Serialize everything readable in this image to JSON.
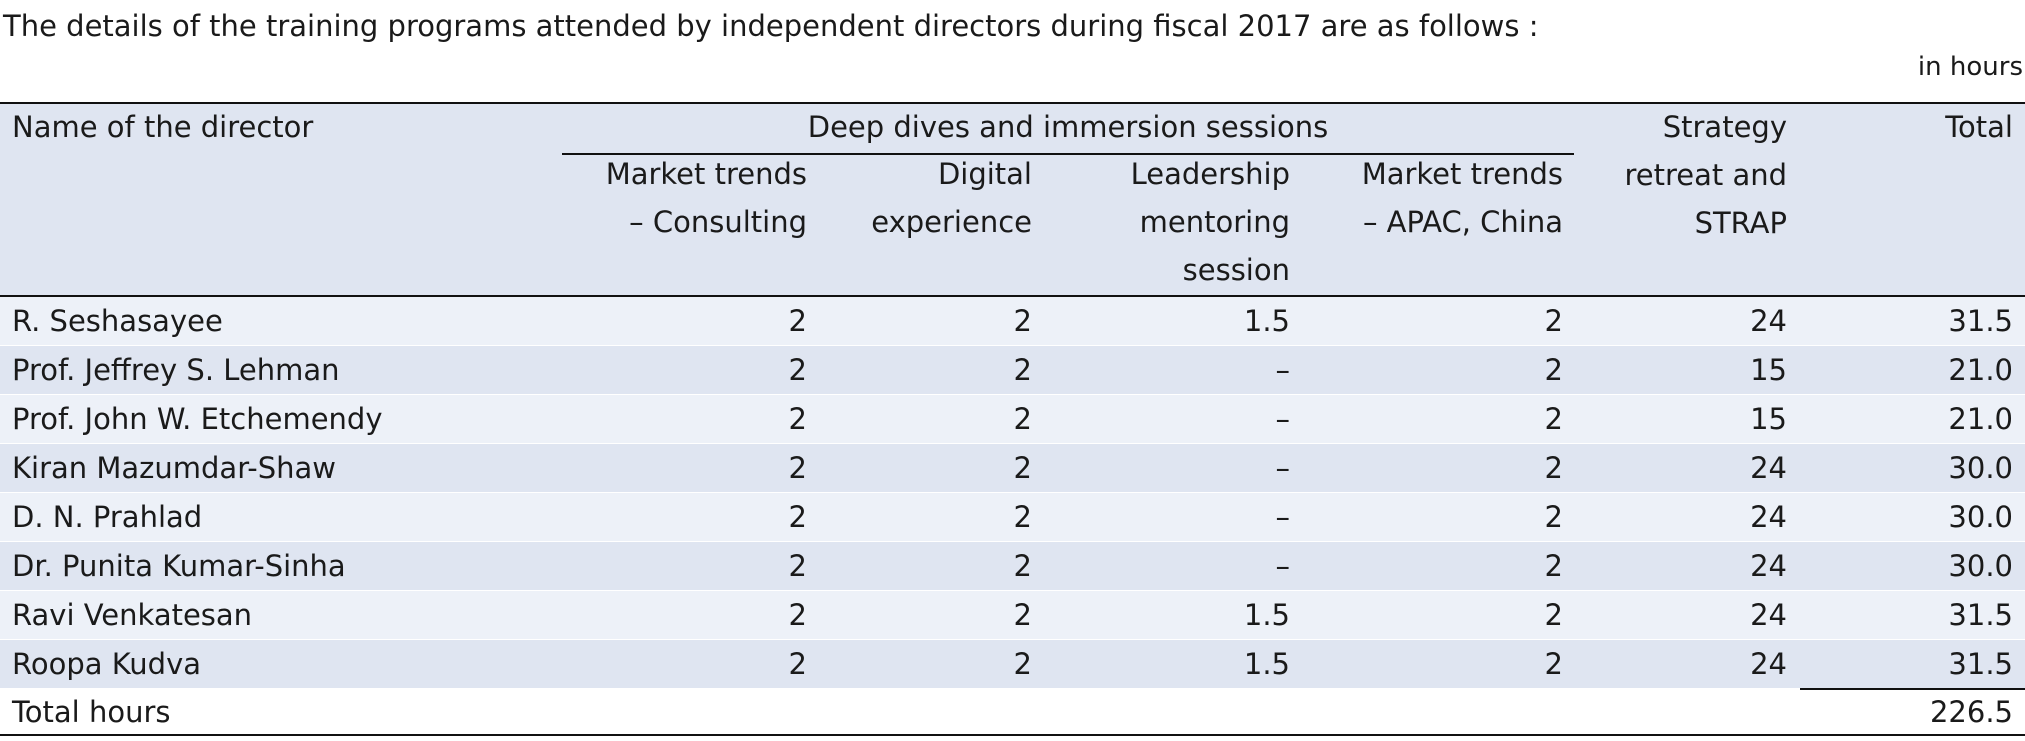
{
  "intro": "The details of the training programs attended by independent directors during fiscal 2017 are as follows :",
  "unit": "in hours",
  "headers": {
    "name": "Name of the director",
    "group": "Deep dives and immersion sessions",
    "col1": [
      "Market trends",
      "– Consulting"
    ],
    "col2": [
      "Digital",
      "experience"
    ],
    "col3": [
      "Leadership",
      "mentoring",
      "session"
    ],
    "col4": [
      "Market trends",
      "– APAC, China"
    ],
    "col5": [
      "Strategy",
      "retreat and",
      "STRAP"
    ],
    "col6": "Total"
  },
  "rows": [
    {
      "name": "R. Seshasayee",
      "c1": "2",
      "c2": "2",
      "c3": "1.5",
      "c4": "2",
      "c5": "24",
      "total": "31.5"
    },
    {
      "name": "Prof. Jeffrey S. Lehman",
      "c1": "2",
      "c2": "2",
      "c3": "–",
      "c4": "2",
      "c5": "15",
      "total": "21.0"
    },
    {
      "name": "Prof. John W. Etchemendy",
      "c1": "2",
      "c2": "2",
      "c3": "–",
      "c4": "2",
      "c5": "15",
      "total": "21.0"
    },
    {
      "name": "Kiran Mazumdar-Shaw",
      "c1": "2",
      "c2": "2",
      "c3": "–",
      "c4": "2",
      "c5": "24",
      "total": "30.0"
    },
    {
      "name": "D. N. Prahlad",
      "c1": "2",
      "c2": "2",
      "c3": "–",
      "c4": "2",
      "c5": "24",
      "total": "30.0"
    },
    {
      "name": "Dr. Punita Kumar-Sinha",
      "c1": "2",
      "c2": "2",
      "c3": "–",
      "c4": "2",
      "c5": "24",
      "total": "30.0"
    },
    {
      "name": "Ravi Venkatesan",
      "c1": "2",
      "c2": "2",
      "c3": "1.5",
      "c4": "2",
      "c5": "24",
      "total": "31.5"
    },
    {
      "name": "Roopa Kudva",
      "c1": "2",
      "c2": "2",
      "c3": "1.5",
      "c4": "2",
      "c5": "24",
      "total": "31.5"
    }
  ],
  "total_row": {
    "label": "Total hours",
    "value": "226.5"
  }
}
